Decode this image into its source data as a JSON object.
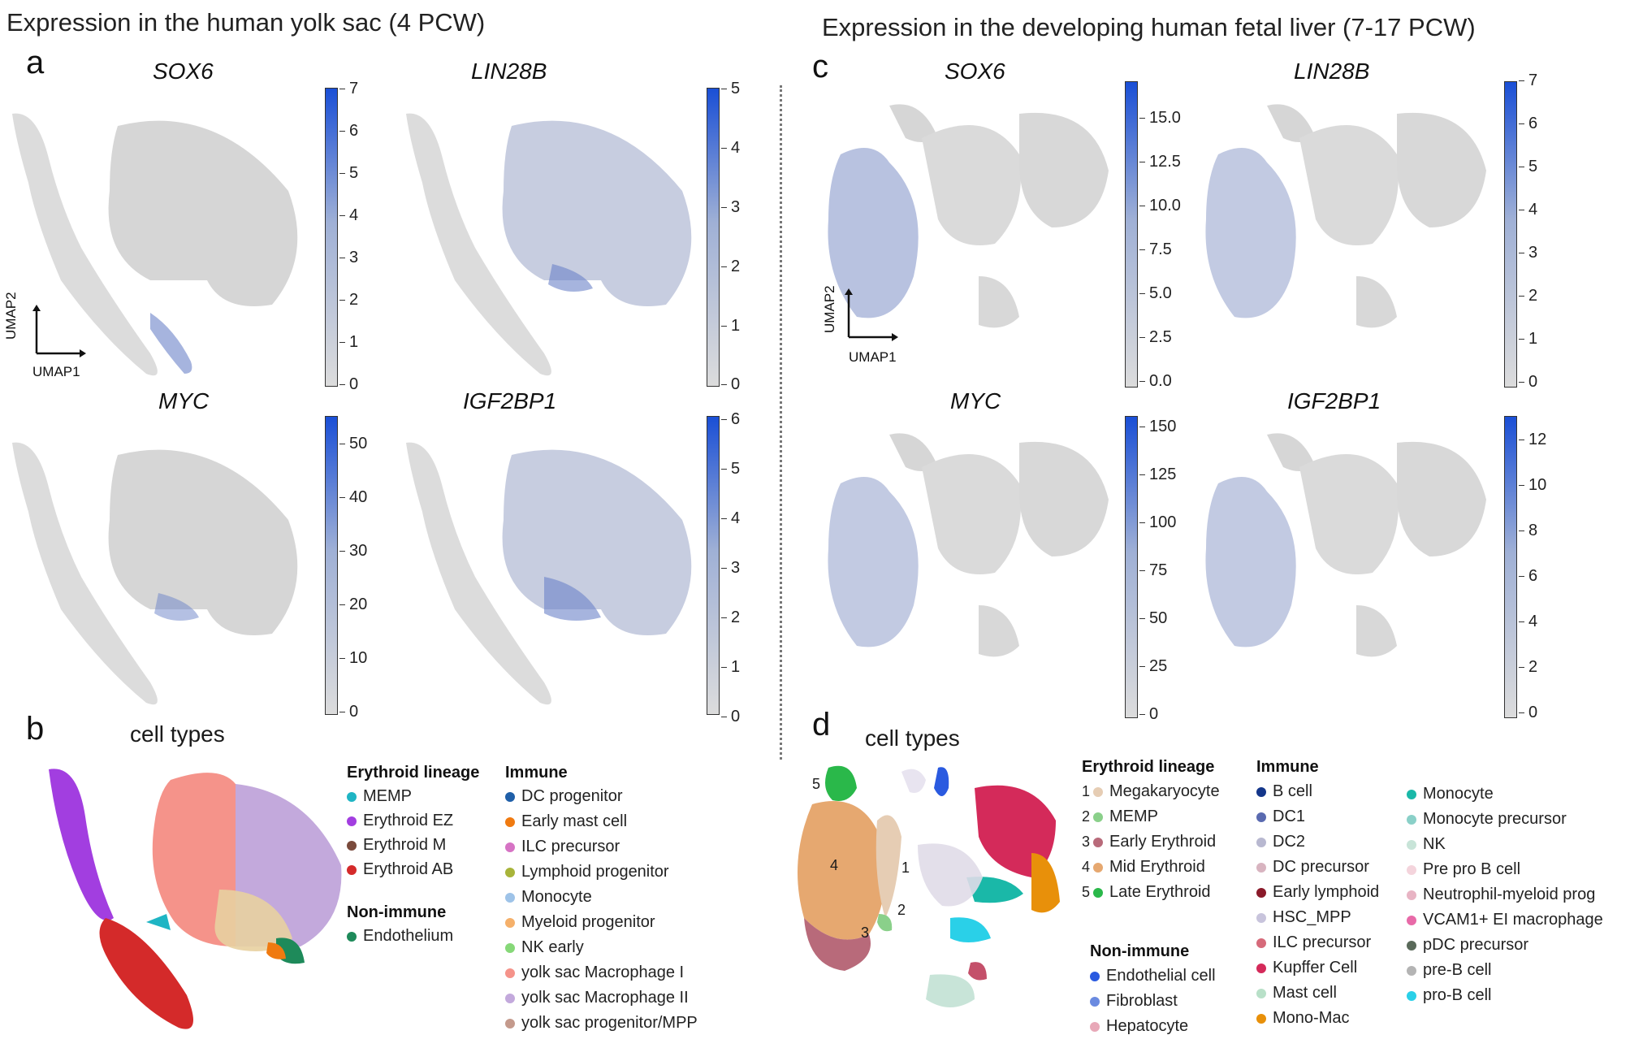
{
  "titles": {
    "left": "Expression in the human yolk sac (4 PCW)",
    "right": "Expression in the developing human fetal liver (7-17 PCW)"
  },
  "panels": {
    "a": "a",
    "b": "b",
    "c": "c",
    "d": "d",
    "cell_types": "cell types"
  },
  "axes": {
    "umap1": "UMAP1",
    "umap2": "UMAP2"
  },
  "yolk_sac_genes": [
    {
      "name": "SOX6",
      "ticks": [
        "7",
        "6",
        "5",
        "4",
        "3",
        "2",
        "1",
        "0"
      ]
    },
    {
      "name": "LIN28B",
      "ticks": [
        "5",
        "4",
        "3",
        "2",
        "1",
        "0"
      ]
    },
    {
      "name": "MYC",
      "ticks": [
        "50",
        "40",
        "30",
        "20",
        "10",
        "0"
      ]
    },
    {
      "name": "IGF2BP1",
      "ticks": [
        "6",
        "5",
        "4",
        "3",
        "2",
        "1",
        "0"
      ]
    }
  ],
  "liver_genes": [
    {
      "name": "SOX6",
      "ticks": [
        "15.0",
        "12.5",
        "10.0",
        "7.5",
        "5.0",
        "2.5",
        "0.0"
      ]
    },
    {
      "name": "LIN28B",
      "ticks": [
        "7",
        "6",
        "5",
        "4",
        "3",
        "2",
        "1",
        "0"
      ]
    },
    {
      "name": "MYC",
      "ticks": [
        "150",
        "125",
        "100",
        "75",
        "50",
        "25",
        "0"
      ]
    },
    {
      "name": "IGF2BP1",
      "ticks": [
        "12",
        "10",
        "8",
        "6",
        "4",
        "2",
        "0"
      ]
    }
  ],
  "yolk_sac_legend": {
    "erythroid_head": "Erythroid lineage",
    "erythroid": [
      {
        "label": "MEMP",
        "color": "#1fb5c4"
      },
      {
        "label": "Erythroid EZ",
        "color": "#a23ee0"
      },
      {
        "label": "Erythroid M",
        "color": "#7a4a3c"
      },
      {
        "label": "Erythroid AB",
        "color": "#d42a2a"
      }
    ],
    "nonimmune_head": "Non-immune",
    "nonimmune": [
      {
        "label": "Endothelium",
        "color": "#1e8a5a"
      }
    ],
    "immune_head": "Immune",
    "immune": [
      {
        "label": "DC progenitor",
        "color": "#1f5fa8"
      },
      {
        "label": "Early mast cell",
        "color": "#f07a10"
      },
      {
        "label": "ILC precursor",
        "color": "#d673c4"
      },
      {
        "label": "Lymphoid progenitor",
        "color": "#a8b43a"
      },
      {
        "label": "Monocyte",
        "color": "#9ec3e8"
      },
      {
        "label": "Myeloid progenitor",
        "color": "#f5b06a"
      },
      {
        "label": "NK early",
        "color": "#86d878"
      },
      {
        "label": "yolk sac Macrophage I",
        "color": "#f5938a"
      },
      {
        "label": "yolk sac Macrophage II",
        "color": "#c3a9dc"
      },
      {
        "label": "yolk sac progenitor/MPP",
        "color": "#c49a8c"
      }
    ]
  },
  "liver_legend": {
    "erythroid_head": "Erythroid lineage",
    "erythroid": [
      {
        "num": "1",
        "label": "Megakaryocyte",
        "color": "#e6cdb4"
      },
      {
        "num": "2",
        "label": "MEMP",
        "color": "#8ad08a"
      },
      {
        "num": "3",
        "label": "Early Erythroid",
        "color": "#b86a7a"
      },
      {
        "num": "4",
        "label": "Mid Erythroid",
        "color": "#e6a870"
      },
      {
        "num": "5",
        "label": "Late Erythroid",
        "color": "#2ab84a"
      }
    ],
    "nonimmune_head": "Non-immune",
    "nonimmune": [
      {
        "label": "Endothelial cell",
        "color": "#2a5ae0"
      },
      {
        "label": "Fibroblast",
        "color": "#6a8ae0"
      },
      {
        "label": "Hepatocyte",
        "color": "#e8a8b8"
      }
    ],
    "immune_head": "Immune",
    "immune_col1": [
      {
        "label": "B cell",
        "color": "#14368a"
      },
      {
        "label": "DC1",
        "color": "#5a6ab0"
      },
      {
        "label": "DC2",
        "color": "#b8b8d0"
      },
      {
        "label": "DC precursor",
        "color": "#d8b4c0"
      },
      {
        "label": "Early lymphoid",
        "color": "#8a1a2a"
      },
      {
        "label": "HSC_MPP",
        "color": "#c8c4dc"
      },
      {
        "label": "ILC precursor",
        "color": "#d66a7a"
      },
      {
        "label": "Kupffer Cell",
        "color": "#d42a5a"
      },
      {
        "label": "Mast cell",
        "color": "#b8e0c8"
      },
      {
        "label": "Mono-Mac",
        "color": "#e8900a"
      }
    ],
    "immune_col2": [
      {
        "label": "Monocyte",
        "color": "#1ab8a8"
      },
      {
        "label": "Monocyte precursor",
        "color": "#8ad0c8"
      },
      {
        "label": "NK",
        "color": "#c8e4d8"
      },
      {
        "label": "Pre pro B cell",
        "color": "#f4d4dc"
      },
      {
        "label": "Neutrophil-myeloid prog",
        "color": "#e8b4c4"
      },
      {
        "label": "VCAM1+ EI macrophage",
        "color": "#e86aa8"
      },
      {
        "label": "pDC precursor",
        "color": "#5a6a5a"
      },
      {
        "label": "pre-B cell",
        "color": "#b4b4b4"
      },
      {
        "label": "pro-B cell",
        "color": "#2ad0e8"
      }
    ]
  },
  "cluster_labels": [
    "1",
    "2",
    "3",
    "4",
    "5"
  ]
}
